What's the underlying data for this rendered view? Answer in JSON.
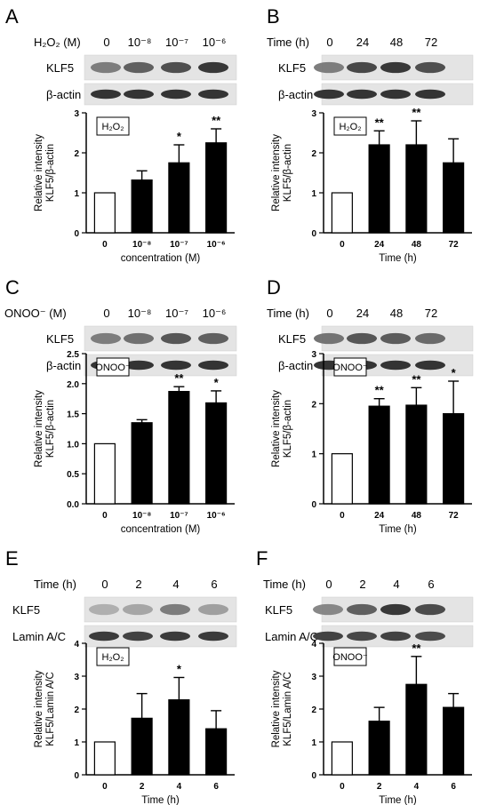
{
  "panels": [
    {
      "letter": "A",
      "header_label": "H₂O₂ (M)",
      "columns": [
        "0",
        "10⁻⁸",
        "10⁻⁷",
        "10⁻⁶"
      ],
      "blots": [
        {
          "label": "KLF5",
          "intensities": [
            0.55,
            0.7,
            0.78,
            0.9
          ]
        },
        {
          "label": "β-actin",
          "intensities": [
            0.92,
            0.92,
            0.92,
            0.92
          ]
        }
      ],
      "chart_data": {
        "type": "bar",
        "categories": [
          "0",
          "10⁻⁸",
          "10⁻⁷",
          "10⁻⁶"
        ],
        "values": [
          1.0,
          1.32,
          1.75,
          2.25
        ],
        "errors": [
          0,
          0.23,
          0.45,
          0.35
        ],
        "significance": [
          "",
          "",
          "*",
          "**"
        ],
        "inset_label": "H₂O₂",
        "ylabel": [
          "Relative intensity",
          "KLF5/β-actin"
        ],
        "xlabel": "concentration (M)",
        "ylim": [
          0,
          3
        ],
        "yticks": [
          "0",
          "1",
          "2",
          "3"
        ],
        "control_bar": "white",
        "treatment_bar": "black"
      }
    },
    {
      "letter": "B",
      "header_label": "Time (h)",
      "columns": [
        "0",
        "24",
        "48",
        "72"
      ],
      "blots": [
        {
          "label": "KLF5",
          "intensities": [
            0.55,
            0.82,
            0.9,
            0.78
          ]
        },
        {
          "label": "β-actin",
          "intensities": [
            0.92,
            0.92,
            0.92,
            0.92
          ]
        }
      ],
      "chart_data": {
        "type": "bar",
        "categories": [
          "0",
          "24",
          "48",
          "72"
        ],
        "values": [
          1.0,
          2.2,
          2.2,
          1.75
        ],
        "errors": [
          0,
          0.35,
          0.6,
          0.6
        ],
        "significance": [
          "",
          "**",
          "**",
          ""
        ],
        "inset_label": "H₂O₂",
        "ylabel": [
          "Relative intensity",
          "KLF5/β-actin"
        ],
        "xlabel": "Time (h)",
        "ylim": [
          0,
          3
        ],
        "yticks": [
          "0",
          "1",
          "2",
          "3"
        ],
        "control_bar": "white",
        "treatment_bar": "black"
      }
    },
    {
      "letter": "C",
      "header_label": "ONOO⁻ (M)",
      "columns": [
        "0",
        "10⁻⁸",
        "10⁻⁷",
        "10⁻⁶"
      ],
      "blots": [
        {
          "label": "KLF5",
          "intensities": [
            0.55,
            0.62,
            0.75,
            0.7
          ]
        },
        {
          "label": "β-actin",
          "intensities": [
            0.92,
            0.92,
            0.92,
            0.92
          ]
        }
      ],
      "chart_data": {
        "type": "bar",
        "categories": [
          "0",
          "10⁻⁸",
          "10⁻⁷",
          "10⁻⁶"
        ],
        "values": [
          1.0,
          1.35,
          1.87,
          1.68
        ],
        "errors": [
          0,
          0.05,
          0.08,
          0.2
        ],
        "significance": [
          "",
          "",
          "**",
          "*"
        ],
        "inset_label": "ONOO⁻",
        "ylabel": [
          "Relative intensity",
          "KLF5/β-actin"
        ],
        "xlabel": "concentration (M)",
        "ylim": [
          0,
          2.5
        ],
        "yticks": [
          "0.0",
          "0.5",
          "1.0",
          "1.5",
          "2.0",
          "2.5"
        ],
        "control_bar": "white",
        "treatment_bar": "black"
      }
    },
    {
      "letter": "D",
      "header_label": "Time (h)",
      "columns": [
        "0",
        "24",
        "48",
        "72"
      ],
      "blots": [
        {
          "label": "KLF5",
          "intensities": [
            0.6,
            0.75,
            0.72,
            0.65
          ]
        },
        {
          "label": "β-actin",
          "intensities": [
            0.92,
            0.92,
            0.92,
            0.92
          ]
        }
      ],
      "chart_data": {
        "type": "bar",
        "categories": [
          "0",
          "24",
          "48",
          "72"
        ],
        "values": [
          1.0,
          1.95,
          1.97,
          1.8
        ],
        "errors": [
          0,
          0.15,
          0.35,
          0.65
        ],
        "significance": [
          "",
          "**",
          "**",
          "*"
        ],
        "inset_label": "ONOO⁻",
        "ylabel": [
          "Relative intensity",
          "KLF5/β-actin"
        ],
        "xlabel": "Time (h)",
        "ylim": [
          0,
          3
        ],
        "yticks": [
          "0",
          "1",
          "2",
          "3"
        ],
        "control_bar": "white",
        "treatment_bar": "black"
      }
    },
    {
      "letter": "E",
      "header_label": "Time (h)",
      "columns": [
        "0",
        "2",
        "4",
        "6"
      ],
      "blots": [
        {
          "label": "KLF5",
          "intensities": [
            0.3,
            0.35,
            0.55,
            0.38
          ]
        },
        {
          "label": "Lamin A/C",
          "intensities": [
            0.88,
            0.85,
            0.88,
            0.88
          ]
        }
      ],
      "chart_data": {
        "type": "bar",
        "categories": [
          "0",
          "2",
          "4",
          "6"
        ],
        "values": [
          1.0,
          1.72,
          2.28,
          1.4
        ],
        "errors": [
          0,
          0.75,
          0.68,
          0.55
        ],
        "significance": [
          "",
          "",
          "*",
          ""
        ],
        "inset_label": "H₂O₂",
        "ylabel": [
          "Relative intensity",
          "KLF5/Lamin A/C"
        ],
        "xlabel": "Time (h)",
        "ylim": [
          0,
          4
        ],
        "yticks": [
          "0",
          "1",
          "2",
          "3",
          "4"
        ],
        "control_bar": "white",
        "treatment_bar": "black"
      }
    },
    {
      "letter": "F",
      "header_label": "Time (h)",
      "columns": [
        "0",
        "2",
        "4",
        "6"
      ],
      "blots": [
        {
          "label": "KLF5",
          "intensities": [
            0.5,
            0.7,
            0.9,
            0.8
          ]
        },
        {
          "label": "Lamin A/C",
          "intensities": [
            0.85,
            0.82,
            0.85,
            0.8
          ]
        }
      ],
      "chart_data": {
        "type": "bar",
        "categories": [
          "0",
          "2",
          "4",
          "6"
        ],
        "values": [
          1.0,
          1.63,
          2.75,
          2.05
        ],
        "errors": [
          0,
          0.42,
          0.85,
          0.42
        ],
        "significance": [
          "",
          "",
          "**",
          ""
        ],
        "inset_label": "ONOO⁻",
        "ylabel": [
          "Relative intensity",
          "KLF5/Lamin A/C"
        ],
        "xlabel": "Time (h)",
        "ylim": [
          0,
          4
        ],
        "yticks": [
          "0",
          "1",
          "2",
          "3",
          "4"
        ],
        "control_bar": "white",
        "treatment_bar": "black"
      }
    }
  ]
}
